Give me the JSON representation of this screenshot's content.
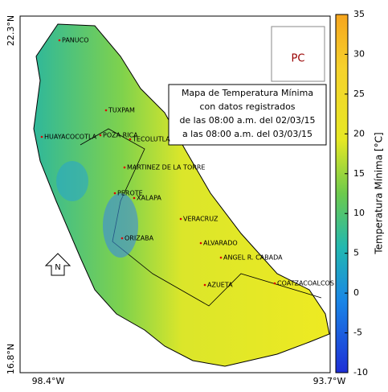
{
  "title_lines": [
    "Mapa de Temperatura Mínima",
    "con datos registrados",
    "de las 08:00 a.m. del 02/03/15",
    "a las 08:00 a.m. del 03/03/15"
  ],
  "axes": {
    "lat_top": "22.3°N",
    "lat_bottom": "16.8°N",
    "lon_left": "98.4°W",
    "lon_right": "93.7°W"
  },
  "logo": "PC",
  "north": "N",
  "cities": [
    "PANUCO",
    "TUXPAM",
    "POZA RICA",
    "HUAYACOCOTLA",
    "TECOLUTLA",
    "MARTINEZ DE LA TORRE",
    "PEROTE",
    "XALAPA",
    "VERACRUZ",
    "ORIZABA",
    "ALVARADO",
    "ANGEL R. CABADA",
    "AZUETA",
    "COATZACOALCOS"
  ],
  "colorbar": {
    "label": "Temperatura Mínima [°C]",
    "lim": [
      -10,
      35
    ],
    "ticks": [
      -10,
      -5,
      0,
      5,
      10,
      15,
      20,
      25,
      30,
      35
    ]
  }
}
